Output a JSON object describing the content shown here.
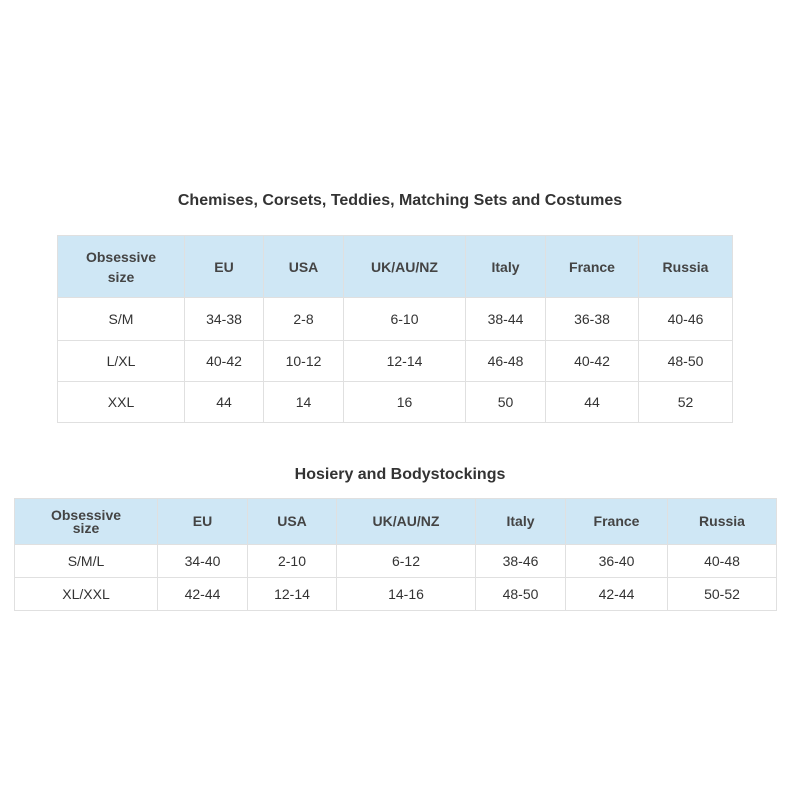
{
  "tables": [
    {
      "title": "Chemises, Corsets, Teddies, Matching Sets and Costumes",
      "header": [
        "Obsessive size",
        "EU",
        "USA",
        "UK/AU/NZ",
        "Italy",
        "France",
        "Russia"
      ],
      "rows": [
        [
          "S/M",
          "34-38",
          "2-8",
          "6-10",
          "38-44",
          "36-38",
          "40-46"
        ],
        [
          "L/XL",
          "40-42",
          "10-12",
          "12-14",
          "46-48",
          "40-42",
          "48-50"
        ],
        [
          "XXL",
          "44",
          "14",
          "16",
          "50",
          "44",
          "52"
        ]
      ]
    },
    {
      "title": "Hosiery and Bodystockings",
      "header": [
        "Obsessive size",
        "EU",
        "USA",
        "UK/AU/NZ",
        "Italy",
        "France",
        "Russia"
      ],
      "rows": [
        [
          "S/M/L",
          "34-40",
          "2-10",
          "6-12",
          "38-46",
          "36-40",
          "40-48"
        ],
        [
          "XL/XXL",
          "42-44",
          "12-14",
          "14-16",
          "48-50",
          "42-44",
          "50-52"
        ]
      ]
    }
  ]
}
